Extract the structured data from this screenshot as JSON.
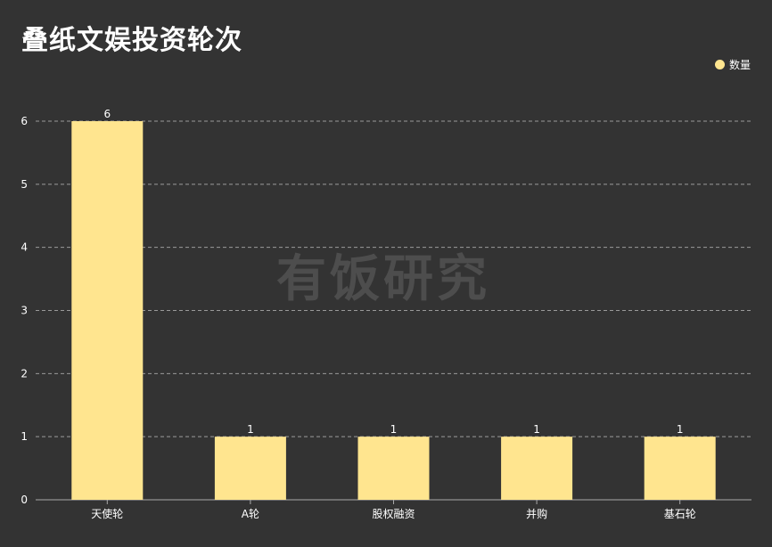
{
  "watermark": "有饭研究",
  "chart_data": {
    "type": "bar",
    "title": "叠纸文娱投资轮次",
    "categories": [
      "天使轮",
      "A轮",
      "股权融资",
      "并购",
      "基石轮"
    ],
    "series": [
      {
        "name": "数量",
        "values": [
          6,
          1,
          1,
          1,
          1
        ]
      }
    ],
    "data_labels": [
      "6",
      "1",
      "1",
      "1",
      "1"
    ],
    "y_ticks": [
      "0",
      "1",
      "2",
      "3",
      "4",
      "5",
      "6"
    ],
    "ylim": [
      0,
      6
    ],
    "xlabel": "",
    "ylabel": "",
    "grid": true,
    "legend_position": "top-right",
    "colors": {
      "background": "#333333",
      "bar": "#FFE58F",
      "grid": "#9a9a9a",
      "axis": "#aaaaaa",
      "text": "#ffffff"
    }
  }
}
